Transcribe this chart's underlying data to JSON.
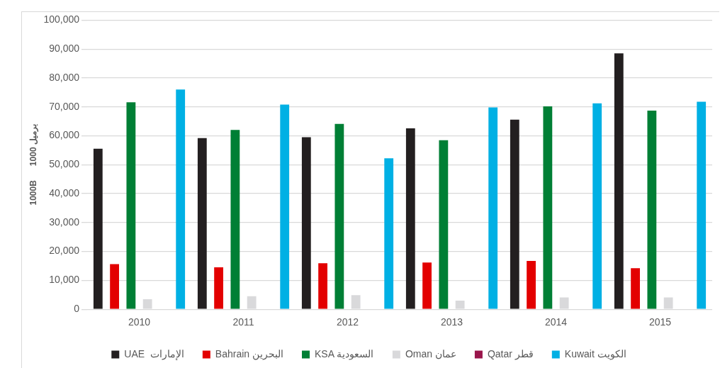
{
  "chart_data": {
    "type": "bar",
    "ylabel": "1000B      1000 برميل",
    "categories": [
      "2010",
      "2011",
      "2012",
      "2013",
      "2014",
      "2015"
    ],
    "series": [
      {
        "name": "UAE  الإمارات",
        "color": "#231f20",
        "values": [
          55500,
          59200,
          59500,
          62600,
          65600,
          88500
        ]
      },
      {
        "name": "Bahrain البحرين",
        "color": "#e30000",
        "values": [
          15600,
          14500,
          15900,
          16200,
          16700,
          14200
        ]
      },
      {
        "name": "KSA السعودية",
        "color": "#007f35",
        "values": [
          71600,
          62000,
          64100,
          58500,
          70200,
          68700
        ]
      },
      {
        "name": "Oman عمان",
        "color": "#d9d9db",
        "values": [
          3500,
          4500,
          4900,
          3000,
          4100,
          4100
        ]
      },
      {
        "name": "Qatar قطر",
        "color": "#99154b",
        "values": [
          null,
          null,
          null,
          null,
          null,
          null
        ]
      },
      {
        "name": "Kuwait الكويت",
        "color": "#00b0e4",
        "values": [
          76000,
          70800,
          52200,
          69800,
          71200,
          71800
        ]
      }
    ],
    "ylim": [
      0,
      100000
    ],
    "yticks": [
      0,
      {
        "value": 10000,
        "label": "10,000"
      },
      {
        "value": 20000,
        "label": "20,000"
      },
      {
        "value": 30000,
        "label": "30,000"
      },
      {
        "value": 40000,
        "label": "40,000"
      },
      {
        "value": 50000,
        "label": "50,000"
      },
      {
        "value": 60000,
        "label": "60,000"
      },
      {
        "value": 70000,
        "label": "70,000"
      },
      {
        "value": 80000,
        "label": "80,000"
      },
      {
        "value": 90000,
        "label": "90,000"
      },
      {
        "value": 100000,
        "label": "100,000"
      }
    ],
    "grid": "y",
    "legend": "bottom"
  }
}
